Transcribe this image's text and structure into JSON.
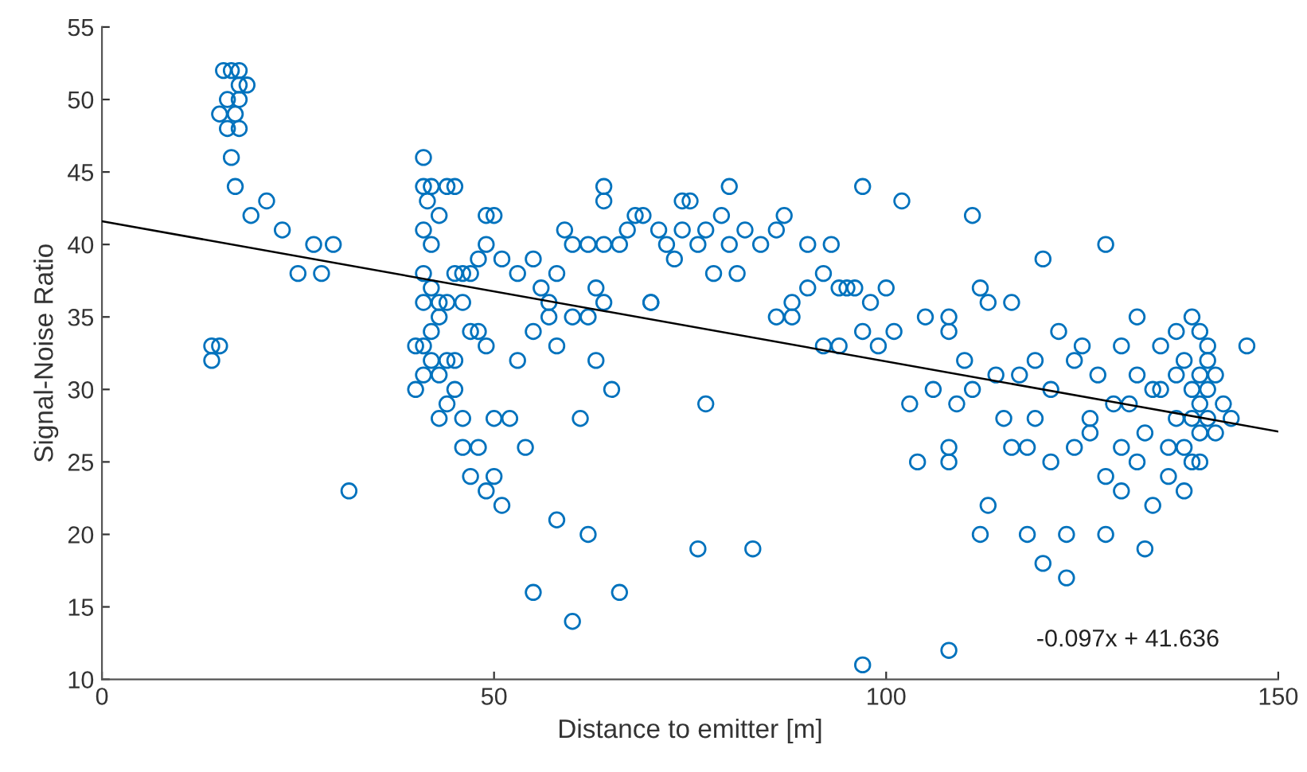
{
  "chart_data": {
    "type": "scatter",
    "xlabel": "Distance to emitter [m]",
    "ylabel": "Signal-Noise Ratio",
    "xlim": [
      0,
      150
    ],
    "ylim": [
      10,
      55
    ],
    "xticks": [
      0,
      50,
      100,
      150
    ],
    "yticks": [
      10,
      15,
      20,
      25,
      30,
      35,
      40,
      45,
      50,
      55
    ],
    "grid": false,
    "legend": false,
    "annotations": [
      "-0.097x + 41.636"
    ],
    "series": [
      {
        "marker": "circle",
        "color": "#0072bd",
        "x": [
          15.5,
          16.5,
          17.5,
          18.5,
          17.5,
          15,
          16,
          17.5,
          17,
          16,
          17.5,
          16.5,
          17,
          19,
          21,
          23,
          25,
          27,
          28,
          29.5,
          14,
          15,
          14,
          31.5,
          41,
          41,
          42,
          41.5,
          43,
          41,
          42,
          44,
          45,
          41,
          42,
          43,
          41,
          40,
          41,
          42,
          43,
          44,
          45,
          46,
          47,
          48,
          49,
          49,
          50,
          46,
          47,
          42,
          43,
          44,
          45,
          45,
          46,
          43,
          44,
          40,
          41,
          48,
          49,
          46,
          48,
          47,
          49,
          50,
          51,
          50,
          52,
          51,
          53,
          55,
          56,
          57,
          57,
          58,
          59,
          60,
          62,
          63,
          62,
          64,
          64,
          64,
          64,
          66,
          67,
          68,
          69,
          70,
          71,
          72,
          73,
          74,
          74,
          75,
          76,
          77,
          79,
          80,
          80,
          82,
          84,
          86,
          87,
          86,
          88,
          88,
          90,
          92,
          93,
          94,
          95,
          96,
          97,
          98,
          97,
          99,
          100,
          101,
          102,
          103,
          104,
          105,
          106,
          108,
          108,
          108,
          108,
          109,
          110,
          111,
          112,
          113,
          114,
          116,
          117,
          118,
          118,
          119,
          120,
          120,
          121,
          121,
          122,
          123,
          123,
          124,
          125,
          126,
          127,
          128,
          128,
          128,
          129,
          130,
          131,
          132,
          132,
          133,
          133,
          134,
          135,
          135,
          136,
          136,
          137,
          137,
          137,
          138,
          138,
          138,
          139,
          139,
          139,
          139,
          140,
          140,
          140,
          140,
          140,
          141,
          141,
          141,
          141,
          142,
          142,
          143,
          144,
          146,
          97,
          108,
          83,
          76,
          66,
          62,
          58,
          60,
          55,
          63,
          58,
          55,
          54,
          53,
          61,
          65,
          60,
          77,
          111,
          113,
          112,
          116,
          115,
          119,
          124,
          126,
          130,
          130,
          132,
          134,
          70,
          78,
          81,
          90,
          92,
          94
        ],
        "values": [
          52,
          52,
          52,
          51,
          51,
          49,
          50,
          50,
          49,
          48,
          48,
          46,
          44,
          42,
          43,
          41,
          38,
          40,
          38,
          40,
          33,
          33,
          32,
          23,
          46,
          44,
          44,
          43,
          42,
          41,
          40,
          44,
          44,
          38,
          37,
          36,
          36,
          33,
          33,
          34,
          35,
          36,
          38,
          38,
          38,
          39,
          40,
          42,
          42,
          36,
          34,
          32,
          31,
          32,
          32,
          30,
          28,
          28,
          29,
          30,
          31,
          34,
          33,
          26,
          26,
          24,
          23,
          24,
          22,
          28,
          28,
          39,
          38,
          39,
          37,
          36,
          35,
          38,
          41,
          40,
          40,
          37,
          35,
          36,
          40,
          43,
          44,
          40,
          41,
          42,
          42,
          36,
          41,
          40,
          39,
          41,
          43,
          43,
          40,
          41,
          42,
          44,
          40,
          41,
          40,
          41,
          42,
          35,
          35,
          36,
          37,
          38,
          40,
          33,
          37,
          37,
          44,
          36,
          34,
          33,
          37,
          34,
          43,
          29,
          25,
          35,
          30,
          35,
          34,
          26,
          25,
          29,
          32,
          42,
          37,
          36,
          31,
          36,
          31,
          26,
          20,
          28,
          18,
          39,
          30,
          25,
          34,
          20,
          17,
          32,
          33,
          28,
          31,
          40,
          20,
          24,
          29,
          23,
          29,
          31,
          35,
          27,
          19,
          22,
          33,
          30,
          26,
          24,
          34,
          31,
          28,
          26,
          23,
          32,
          35,
          30,
          28,
          25,
          34,
          31,
          29,
          27,
          25,
          33,
          30,
          32,
          28,
          31,
          27,
          29,
          28,
          33,
          11,
          12,
          19,
          19,
          16,
          20,
          21,
          14,
          16,
          32,
          33,
          34,
          26,
          32,
          28,
          30,
          35,
          29,
          30,
          22,
          20,
          26,
          28,
          32,
          26,
          27,
          33,
          26,
          25,
          30,
          36,
          38,
          38,
          40,
          33,
          37
        ]
      },
      {
        "type": "line",
        "color": "#000000",
        "x": [
          0,
          150
        ],
        "values": [
          41.6,
          27.1
        ]
      }
    ]
  }
}
